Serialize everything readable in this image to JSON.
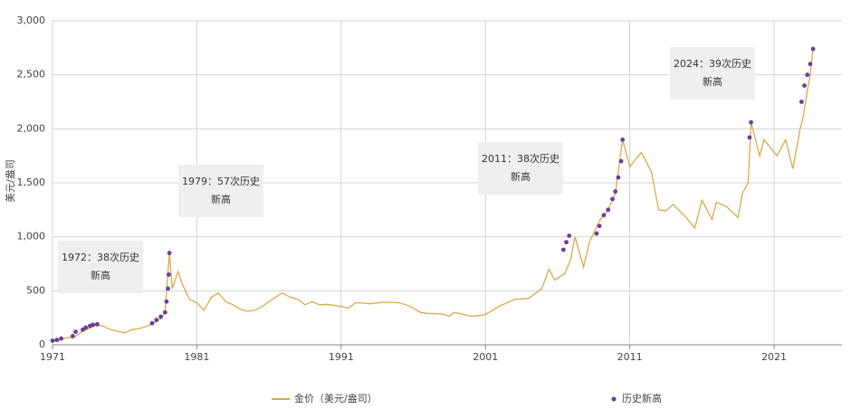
{
  "chart_data": {
    "type": "line",
    "y_label": "美元/盎司",
    "xlim": [
      1971,
      2025.7
    ],
    "xticks": [
      1971,
      1981,
      1991,
      2001,
      2011,
      2021
    ],
    "ylim": [
      0,
      3000
    ],
    "yticks": [
      0,
      500,
      {
        "value": 1000,
        "label": "1,000"
      },
      {
        "value": 1500,
        "label": "1,500"
      },
      {
        "value": 2000,
        "label": "2,000"
      },
      {
        "value": 2500,
        "label": "2,500"
      },
      {
        "value": 3000,
        "label": "3,000"
      }
    ],
    "grid": true,
    "annotations": [
      "1972：38次历史新高",
      "1979：57次历史新高",
      "2011：38次历史新高",
      "2024：39次历史新高"
    ],
    "series": [
      {
        "name": "金价（美元/盎司）",
        "style": "line",
        "color": "#d8ab4a",
        "x": [
          1971.0,
          1971.5,
          1972.0,
          1972.5,
          1973.0,
          1973.5,
          1974.0,
          1974.5,
          1975.0,
          1975.7,
          1976.0,
          1976.5,
          1977.0,
          1977.5,
          1978.0,
          1978.5,
          1978.8,
          1979.1,
          1979.3,
          1979.7,
          1980.0,
          1980.5,
          1981.0,
          1981.5,
          1982.0,
          1982.5,
          1983.0,
          1983.5,
          1984.0,
          1984.5,
          1985.0,
          1985.5,
          1986.0,
          1986.9,
          1987.5,
          1988.0,
          1988.5,
          1989.0,
          1989.5,
          1990.0,
          1990.5,
          1991.0,
          1991.5,
          1992.0,
          1992.6,
          1993.0,
          1994.0,
          1995.0,
          1995.5,
          1996.0,
          1996.5,
          1997.0,
          1998.0,
          1998.5,
          1998.8,
          1999.5,
          2000.0,
          2000.5,
          2001.0,
          2001.5,
          2002.0,
          2003.0,
          2004.0,
          2004.9,
          2005.4,
          2005.8,
          2006.5,
          2006.9,
          2007.2,
          2007.8,
          2008.2,
          2008.9,
          2009.5,
          2010.0,
          2010.5,
          2011.0,
          2011.8,
          2012.5,
          2013.0,
          2013.5,
          2014.0,
          2014.9,
          2015.5,
          2016.0,
          2016.7,
          2017.0,
          2017.7,
          2018.5,
          2018.8,
          2019.2,
          2019.4,
          2020.0,
          2020.3,
          2021.2,
          2021.8,
          2022.3,
          2022.8,
          2023.0,
          2023.3,
          2023.5,
          2023.7
        ],
        "values": [
          38,
          45,
          65,
          70,
          120,
          150,
          180,
          175,
          140,
          120,
          110,
          140,
          150,
          170,
          200,
          240,
          300,
          850,
          520,
          680,
          560,
          420,
          390,
          320,
          440,
          480,
          400,
          370,
          330,
          310,
          320,
          350,
          400,
          480,
          440,
          420,
          370,
          400,
          370,
          375,
          365,
          355,
          340,
          390,
          385,
          380,
          395,
          390,
          370,
          340,
          300,
          290,
          285,
          265,
          300,
          280,
          265,
          270,
          280,
          320,
          360,
          420,
          430,
          520,
          700,
          600,
          660,
          790,
          1000,
          720,
          950,
          1150,
          1250,
          1400,
          1900,
          1650,
          1780,
          1600,
          1250,
          1240,
          1300,
          1180,
          1080,
          1340,
          1160,
          1320,
          1280,
          1180,
          1400,
          1500,
          2060,
          1750,
          1900,
          1750,
          1900,
          1630,
          2000,
          2100,
          2350,
          2500,
          2740
        ]
      },
      {
        "name": "历史新高",
        "style": "scatter",
        "color": "#6a3d9a",
        "x": [
          1971.0,
          1971.3,
          1971.6,
          1972.4,
          1972.6,
          1973.1,
          1973.3,
          1973.6,
          1973.8,
          1974.1,
          1977.9,
          1978.2,
          1978.5,
          1978.8,
          1978.9,
          1979.0,
          1979.05,
          1979.1,
          2006.4,
          2006.6,
          2006.8,
          2008.7,
          2008.9,
          2009.2,
          2009.5,
          2009.8,
          2010.0,
          2010.2,
          2010.4,
          2010.5,
          2019.3,
          2019.4,
          2022.9,
          2023.1,
          2023.3,
          2023.5,
          2023.7
        ],
        "values": [
          38,
          45,
          58,
          80,
          120,
          140,
          160,
          175,
          185,
          190,
          200,
          230,
          260,
          300,
          400,
          520,
          650,
          850,
          880,
          950,
          1010,
          1030,
          1100,
          1200,
          1250,
          1350,
          1420,
          1550,
          1700,
          1900,
          1920,
          2060,
          2250,
          2400,
          2500,
          2600,
          2740
        ]
      }
    ]
  }
}
